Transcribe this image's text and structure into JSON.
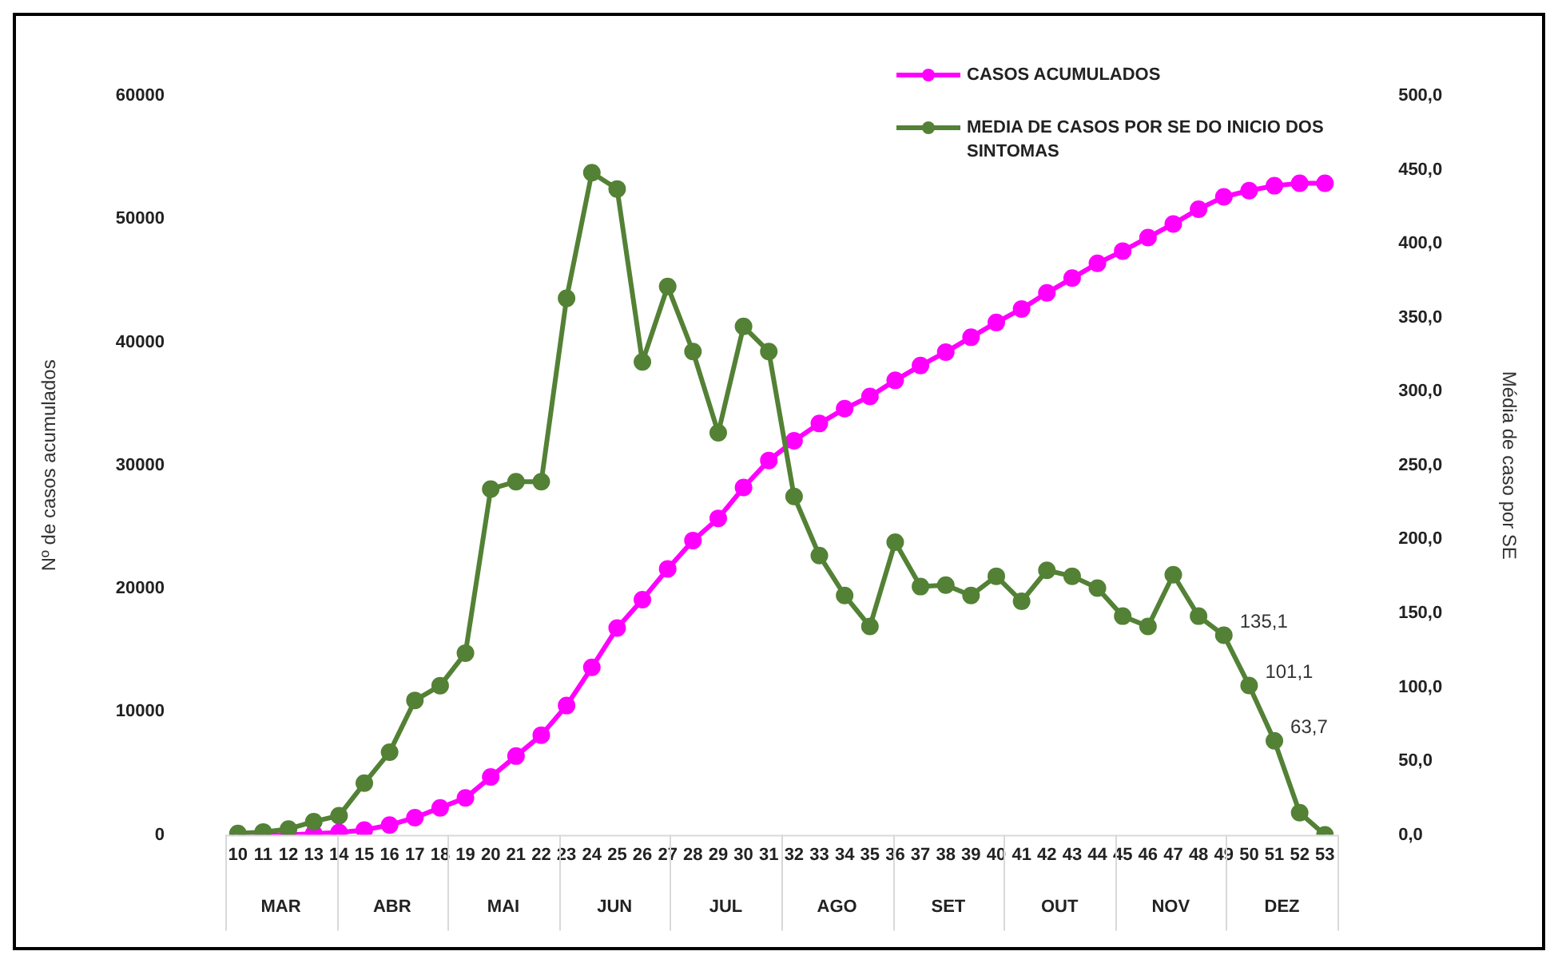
{
  "chart_data": {
    "type": "line",
    "ylabel": "Nº de casos acumulados",
    "y2label": "Média de caso por SE",
    "categories": [
      "10",
      "11",
      "12",
      "13",
      "14",
      "15",
      "16",
      "17",
      "18",
      "19",
      "20",
      "21",
      "22",
      "23",
      "24",
      "25",
      "26",
      "27",
      "28",
      "29",
      "30",
      "31",
      "32",
      "33",
      "34",
      "35",
      "36",
      "37",
      "38",
      "39",
      "40",
      "41",
      "42",
      "43",
      "44",
      "45",
      "46",
      "47",
      "48",
      "49",
      "50",
      "51",
      "52",
      "53"
    ],
    "series": [
      {
        "name": "CASOS ACUMULADOS",
        "color": "#ff00ff",
        "values": [
          0,
          0,
          0,
          100,
          200,
          400,
          800,
          1400,
          2200,
          3000,
          4700,
          6400,
          8100,
          10500,
          13600,
          16800,
          19100,
          21600,
          23900,
          25700,
          28200,
          30400,
          32000,
          33400,
          34600,
          35600,
          36900,
          38100,
          39200,
          40400,
          41600,
          42700,
          44000,
          45200,
          46400,
          47400,
          48500,
          49600,
          50800,
          51800,
          52300,
          52700,
          52900,
          52900
        ]
      },
      {
        "name": "MEDIA DE CASOS POR SE DO INICIO DOS SINTOMAS",
        "color": "#538135",
        "axis": "y2",
        "values": [
          1,
          2,
          4,
          9,
          13,
          35,
          56,
          91,
          101,
          123,
          234,
          239,
          239,
          363,
          448,
          437,
          320,
          371,
          327,
          272,
          344,
          327,
          229,
          189,
          162,
          141,
          198,
          168,
          169,
          162,
          175,
          158,
          179,
          175,
          167,
          148,
          141,
          176,
          148,
          135.1,
          101.1,
          63.7,
          15,
          0
        ],
        "value_labels": [
          null,
          null,
          null,
          null,
          null,
          null,
          null,
          null,
          null,
          null,
          null,
          null,
          null,
          null,
          null,
          null,
          null,
          null,
          null,
          null,
          null,
          null,
          null,
          null,
          null,
          null,
          null,
          null,
          null,
          null,
          null,
          null,
          null,
          null,
          null,
          null,
          null,
          null,
          null,
          "135,1",
          "101,1",
          "63,7",
          null,
          null
        ]
      }
    ],
    "ylim": [
      0,
      60000
    ],
    "yticks": [
      0,
      10000,
      20000,
      30000,
      40000,
      50000,
      60000
    ],
    "y2lim": [
      0,
      500
    ],
    "y2ticks": [
      {
        "value": 0,
        "label": "0,0"
      },
      {
        "value": 50,
        "label": "50,0"
      },
      {
        "value": 100,
        "label": "100,0"
      },
      {
        "value": 150,
        "label": "150,0"
      },
      {
        "value": 200,
        "label": "200,0"
      },
      {
        "value": 250,
        "label": "250,0"
      },
      {
        "value": 300,
        "label": "300,0"
      },
      {
        "value": 350,
        "label": "350,0"
      },
      {
        "value": 400,
        "label": "400,0"
      },
      {
        "value": 450,
        "label": "450,0"
      },
      {
        "value": 500,
        "label": "500,0"
      }
    ],
    "annotations": [
      "MAR",
      "ABR",
      "MAI",
      "JUN",
      "JUL",
      "AGO",
      "SET",
      "OUT",
      "NOV",
      "DEZ"
    ],
    "grid": false,
    "legend": "top right",
    "marker": "circle",
    "line_style": "solid"
  }
}
